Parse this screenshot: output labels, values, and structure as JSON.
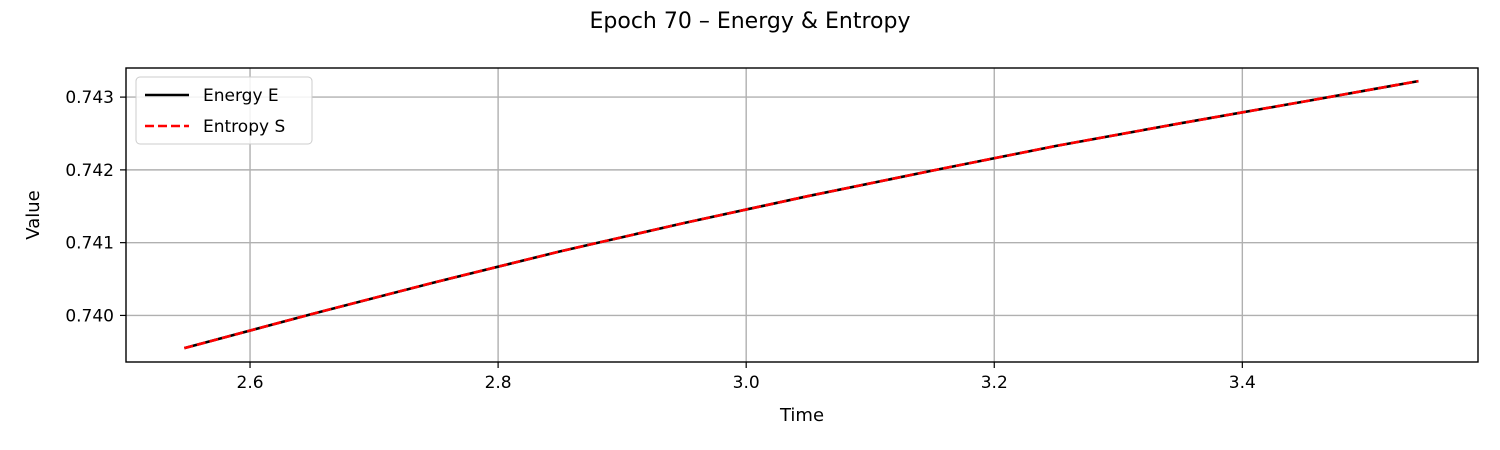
{
  "chart_data": {
    "type": "line",
    "title": "Epoch 70 – Energy & Entropy",
    "xlabel": "Time",
    "ylabel": "Value",
    "xlim": [
      2.5,
      3.59
    ],
    "ylim": [
      0.73936,
      0.7434
    ],
    "x_ticks": [
      2.6,
      2.8,
      3.0,
      3.2,
      3.4
    ],
    "x_tick_labels": [
      "2.6",
      "2.8",
      "3.0",
      "3.2",
      "3.4"
    ],
    "y_ticks": [
      0.74,
      0.741,
      0.742,
      0.743
    ],
    "y_tick_labels": [
      "0.740",
      "0.741",
      "0.742",
      "0.743"
    ],
    "grid": true,
    "legend_position": "top-left",
    "series": [
      {
        "name": "Energy E",
        "color": "#000000",
        "style": "solid",
        "x": [
          2.547,
          2.65,
          2.75,
          2.85,
          2.95,
          3.05,
          3.15,
          3.25,
          3.35,
          3.45,
          3.542
        ],
        "y": [
          0.73955,
          0.74002,
          0.74046,
          0.74088,
          0.74127,
          0.74164,
          0.74199,
          0.74233,
          0.74264,
          0.74294,
          0.74322
        ]
      },
      {
        "name": "Entropy S",
        "color": "#ff0000",
        "style": "dashed",
        "x": [
          2.547,
          2.65,
          2.75,
          2.85,
          2.95,
          3.05,
          3.15,
          3.25,
          3.35,
          3.45,
          3.542
        ],
        "y": [
          0.73955,
          0.74002,
          0.74046,
          0.74088,
          0.74127,
          0.74164,
          0.74199,
          0.74233,
          0.74264,
          0.74294,
          0.74322
        ]
      }
    ]
  }
}
